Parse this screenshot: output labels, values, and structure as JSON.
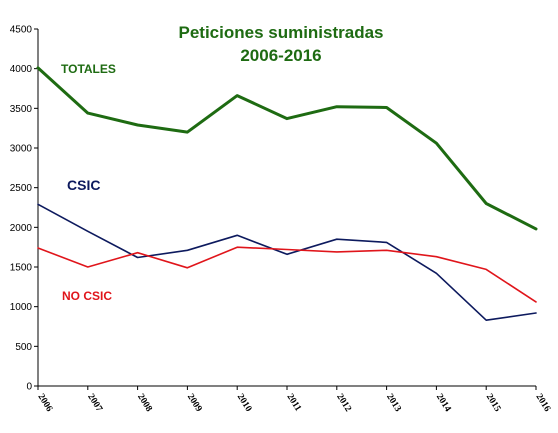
{
  "chart_data": {
    "type": "line",
    "title": "Peticiones suministradas",
    "subtitle": "2006-2016",
    "xlabel": "",
    "ylabel": "",
    "categories": [
      "2006",
      "2007",
      "2008",
      "2009",
      "2010",
      "2011",
      "2012",
      "2013",
      "2014",
      "2015",
      "2016"
    ],
    "ylim": [
      0,
      4500
    ],
    "yticks": [
      "0",
      "500",
      "1000",
      "1500",
      "2000",
      "2500",
      "3000",
      "3500",
      "4000",
      "4500"
    ],
    "grid": false,
    "legend": "inline labels",
    "series": [
      {
        "name": "TOTALES",
        "color": "#1e6b12",
        "values": [
          4010,
          3440,
          3290,
          3200,
          3660,
          3370,
          3520,
          3510,
          3060,
          2300,
          1980
        ]
      },
      {
        "name": "CSIC",
        "color": "#0d1a5e",
        "values": [
          2290,
          1950,
          1620,
          1710,
          1900,
          1660,
          1850,
          1810,
          1420,
          830,
          920
        ]
      },
      {
        "name": "NO CSIC",
        "color": "#e0151b",
        "values": [
          1740,
          1500,
          1680,
          1490,
          1750,
          1720,
          1690,
          1710,
          1630,
          1470,
          1060
        ]
      }
    ]
  }
}
